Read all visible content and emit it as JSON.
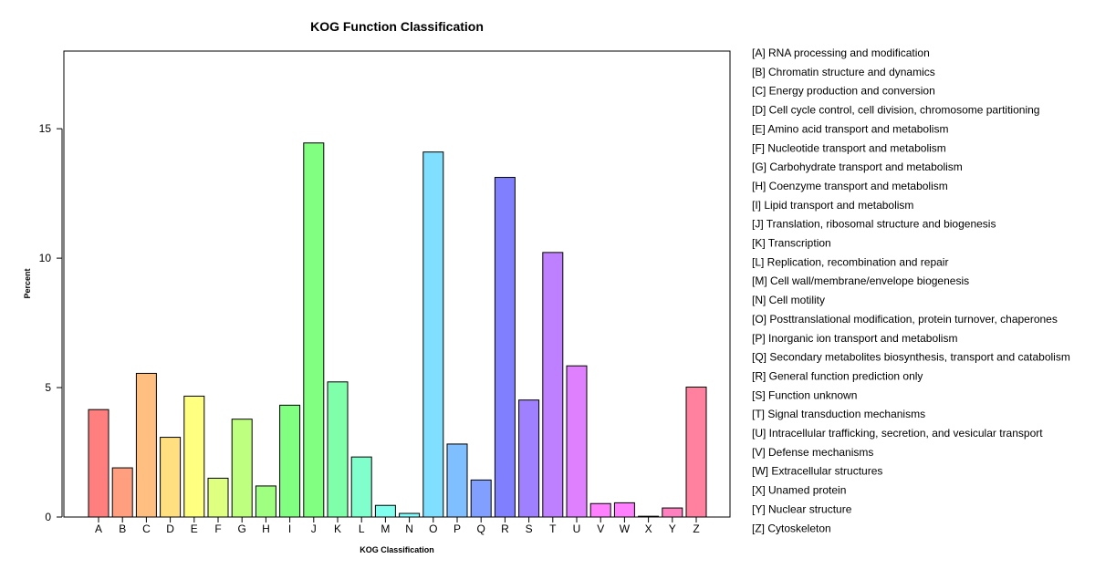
{
  "chart_data": {
    "type": "bar",
    "title": "KOG Function Classification",
    "xlabel": "KOG Classification",
    "ylabel": "Percent",
    "ylim": [
      0,
      18
    ],
    "yticks": [
      0,
      5,
      10,
      15
    ],
    "grid": false,
    "legend_position": "right",
    "categories": [
      "A",
      "B",
      "C",
      "D",
      "E",
      "F",
      "G",
      "H",
      "I",
      "J",
      "K",
      "L",
      "M",
      "N",
      "O",
      "P",
      "Q",
      "R",
      "S",
      "T",
      "U",
      "V",
      "W",
      "X",
      "Y",
      "Z"
    ],
    "values": [
      4.15,
      1.9,
      5.55,
      3.08,
      4.67,
      1.5,
      3.78,
      1.2,
      4.32,
      14.45,
      5.22,
      2.32,
      0.45,
      0.14,
      14.1,
      2.82,
      1.43,
      13.12,
      4.52,
      10.22,
      5.84,
      0.52,
      0.55,
      0.03,
      0.35,
      5.02
    ],
    "colors": [
      "#ff7f7f",
      "#ff9f80",
      "#ffbf80",
      "#ffdf80",
      "#ffff80",
      "#dfff80",
      "#bfff80",
      "#9fff80",
      "#80ff80",
      "#80ff80",
      "#80ffaa",
      "#80ffcc",
      "#80ffee",
      "#80ffff",
      "#80dfff",
      "#80bfff",
      "#809fff",
      "#8080ff",
      "#9f80ff",
      "#bf80ff",
      "#df80ff",
      "#ff80ff",
      "#ff80ff",
      "#ff80df",
      "#ff80bf",
      "#ff809f"
    ],
    "legend": [
      "[A] RNA processing and modification",
      "[B] Chromatin structure and dynamics",
      "[C] Energy production and conversion",
      "[D] Cell cycle control, cell division, chromosome partitioning",
      "[E] Amino acid transport and metabolism",
      "[F] Nucleotide transport and metabolism",
      "[G] Carbohydrate transport and metabolism",
      "[H] Coenzyme transport and metabolism",
      "[I] Lipid transport and metabolism",
      "[J] Translation, ribosomal structure and biogenesis",
      "[K] Transcription",
      "[L] Replication, recombination and repair",
      "[M] Cell wall/membrane/envelope biogenesis",
      "[N] Cell motility",
      "[O] Posttranslational modification, protein turnover, chaperones",
      "[P] Inorganic ion transport and metabolism",
      "[Q] Secondary metabolites biosynthesis, transport and catabolism",
      "[R] General function prediction only",
      "[S] Function unknown",
      "[T] Signal transduction mechanisms",
      "[U] Intracellular trafficking, secretion, and vesicular transport",
      "[V] Defense mechanisms",
      "[W] Extracellular structures",
      "[X] Unamed protein",
      "[Y] Nuclear structure",
      "[Z] Cytoskeleton"
    ]
  }
}
